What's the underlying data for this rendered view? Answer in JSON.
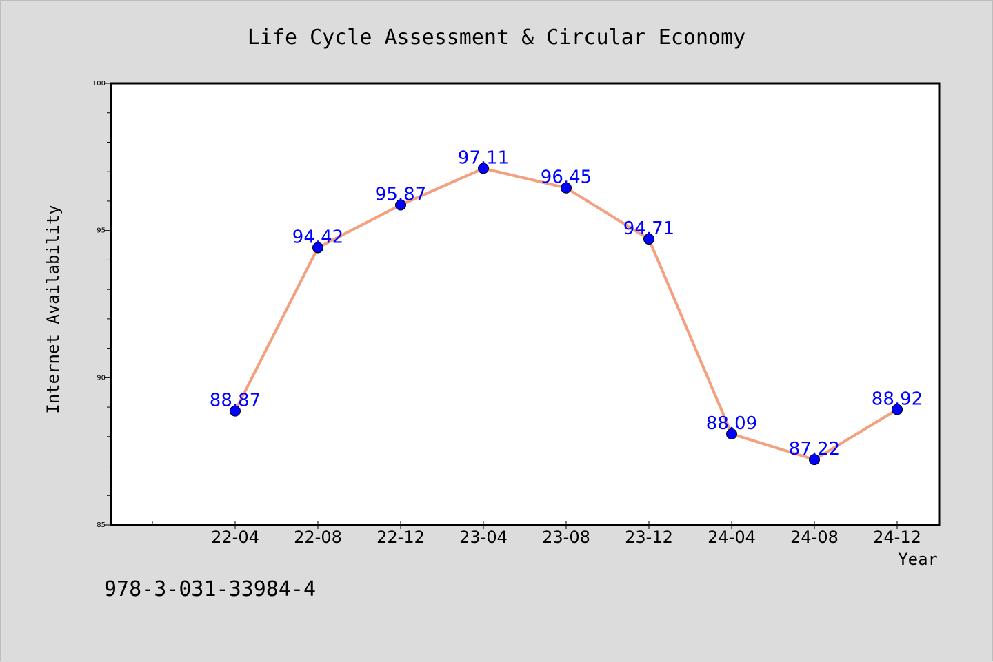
{
  "chart_data": {
    "type": "line",
    "title": "Life Cycle Assessment & Circular Economy",
    "xlabel": "Year",
    "ylabel": "Internet Availability",
    "categories": [
      "22-04",
      "22-08",
      "22-12",
      "23-04",
      "23-08",
      "23-12",
      "24-04",
      "24-08",
      "24-12"
    ],
    "series": [
      {
        "values": [
          88.87,
          94.42,
          95.87,
          97.11,
          96.45,
          94.71,
          88.09,
          87.22,
          88.92
        ],
        "data_labels": [
          "88.87",
          "94.42",
          "95.87",
          "97.11",
          "96.45",
          "94.71",
          "88.09",
          "87.22",
          "88.92"
        ],
        "line_color": "#f4a07f",
        "marker_color": "#0000ff"
      }
    ],
    "ylim": [
      85,
      100
    ],
    "yticks": [
      85,
      90,
      95,
      100
    ],
    "ytick_labels": [
      "85",
      "90",
      "95",
      "100"
    ],
    "grid": false,
    "legend": "none"
  },
  "footnote": "978-3-031-33984-4",
  "colors": {
    "background": "#dcdcdc",
    "plot_background": "#ffffff",
    "line": "#f4a07f",
    "marker": "#0000ff",
    "data_label": "#0000ff"
  }
}
